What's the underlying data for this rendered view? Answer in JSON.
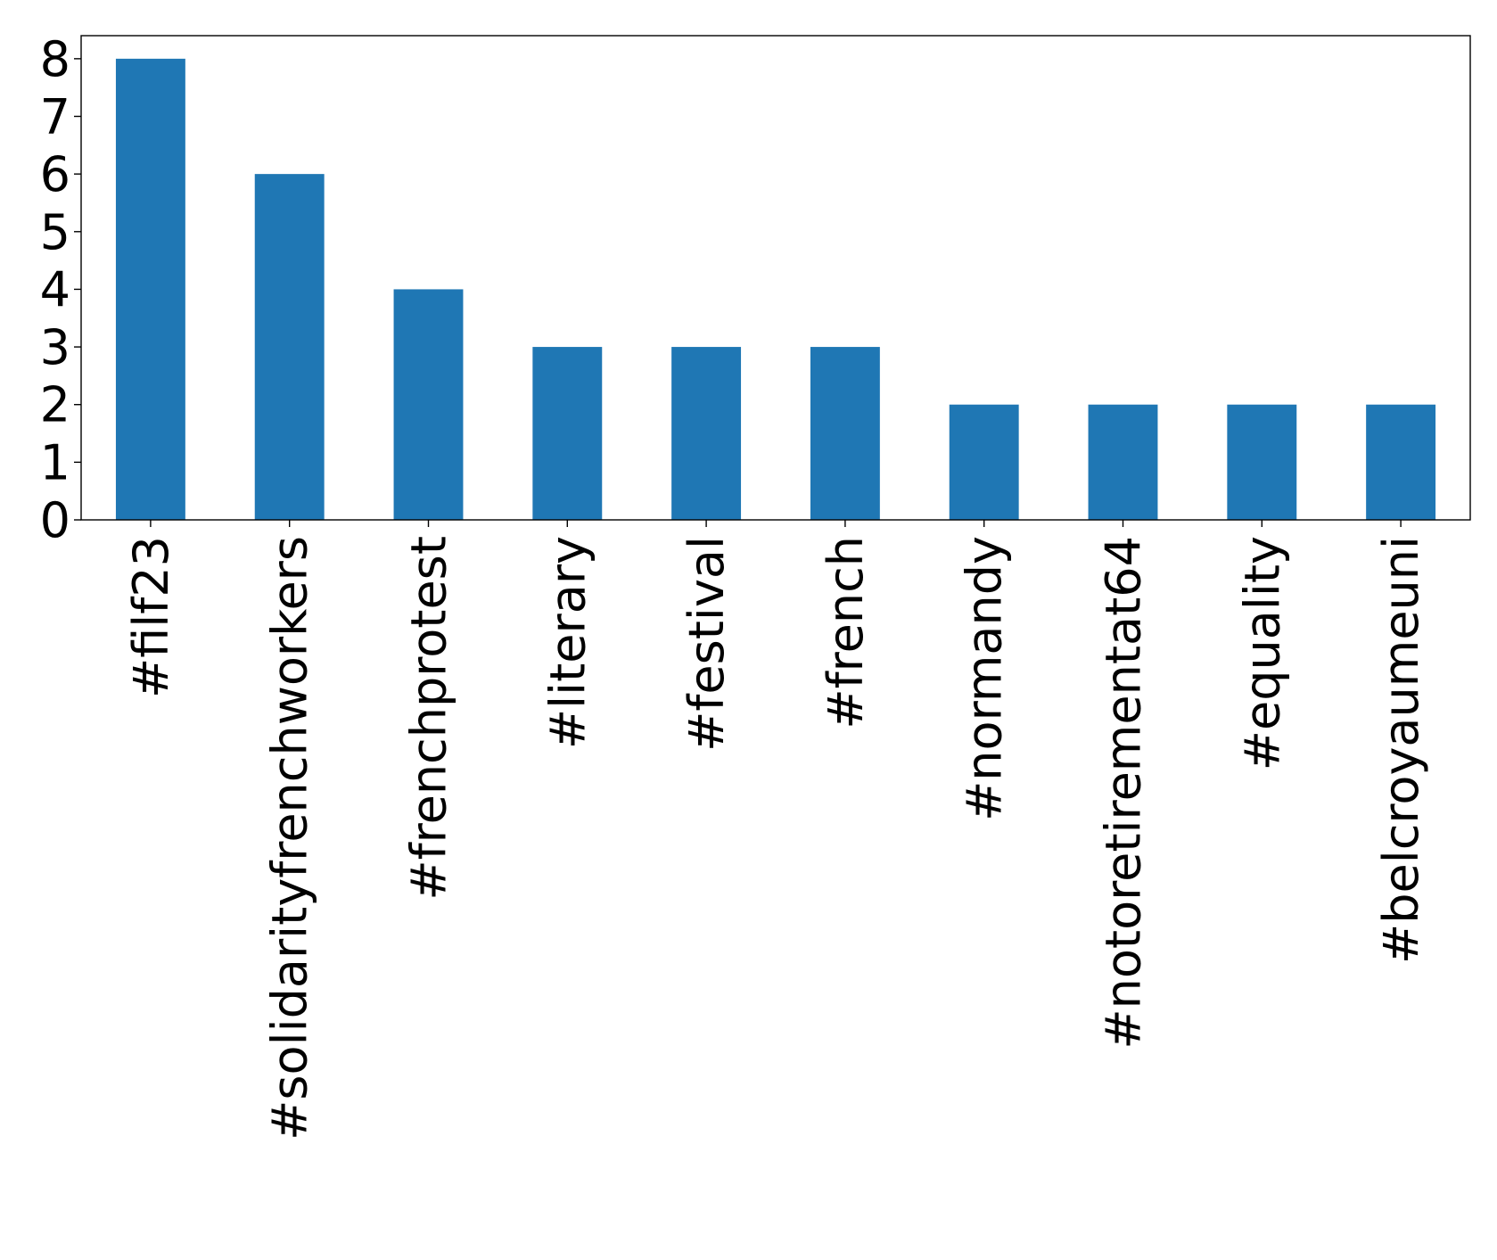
{
  "chart_data": {
    "type": "bar",
    "title": "",
    "xlabel": "",
    "ylabel": "",
    "categories": [
      "#filf23",
      "#solidarityfrenchworkers",
      "#frenchprotest",
      "#literary",
      "#festival",
      "#french",
      "#normandy",
      "#notoretirementat64",
      "#equality",
      "#belcroyaumeuni"
    ],
    "values": [
      8,
      6,
      4,
      3,
      3,
      3,
      2,
      2,
      2,
      2
    ],
    "ylim": [
      0,
      8.4
    ],
    "yticks": [
      "0",
      "1",
      "2",
      "3",
      "4",
      "5",
      "6",
      "7",
      "8"
    ],
    "bar_color": "#1f77b4",
    "grid": false,
    "legend": "none"
  }
}
